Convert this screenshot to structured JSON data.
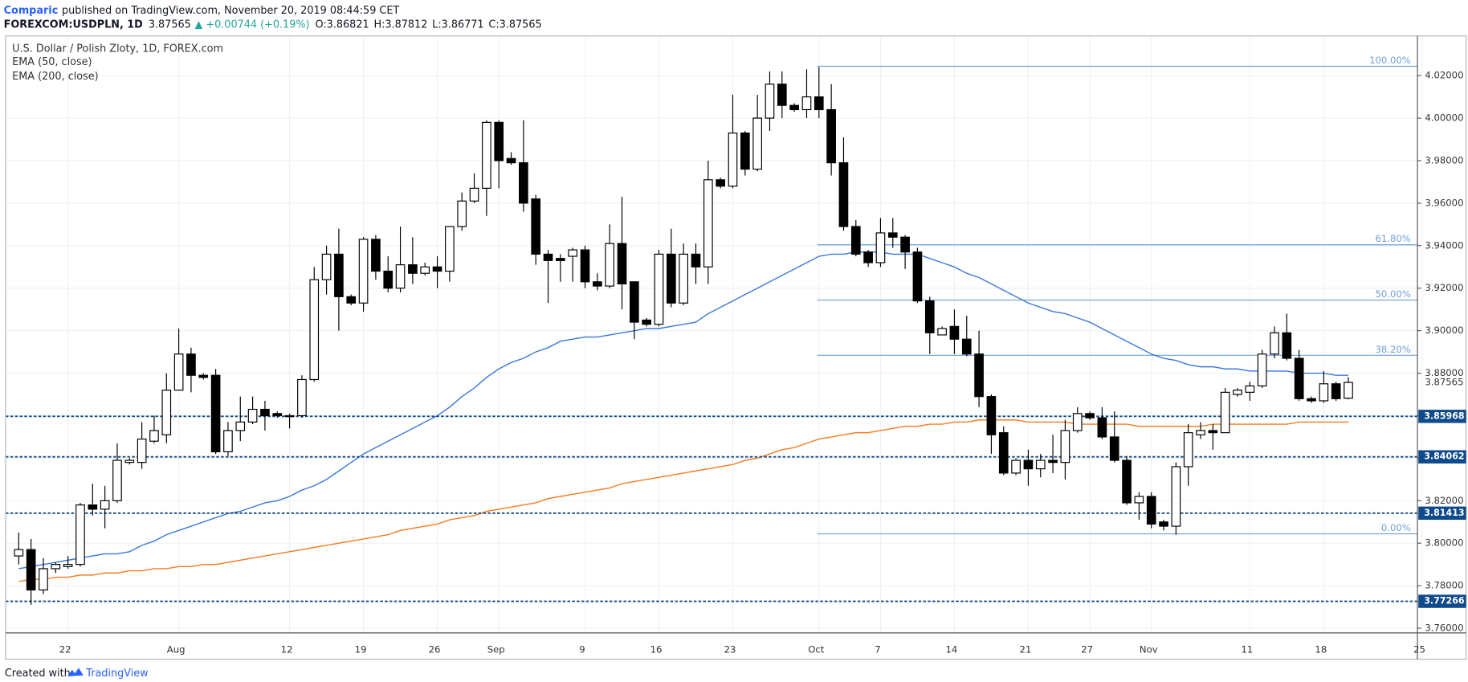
{
  "header": {
    "author": "Comparic",
    "published": "published on TradingView.com, November 20, 2019 08:44:59 CET",
    "symbol": "FOREXCOM:USDPLN, 1D",
    "price": "3.87565",
    "change": "▲ +0.00744 (+0.19%)",
    "ohlc": [
      "O:3.86821",
      "H:3.87812",
      "L:3.86771",
      "C:3.87565"
    ]
  },
  "footer": {
    "created": "Created with",
    "brand": "TradingView"
  },
  "chart_data": {
    "type": "candlestick",
    "title": "U.S. Dollar / Polish Zloty, 1D, FOREX.com",
    "categories": [
      null,
      null,
      null,
      null,
      "22",
      null,
      null,
      null,
      null,
      null,
      null,
      null,
      null,
      "Aug",
      null,
      null,
      null,
      null,
      null,
      null,
      null,
      null,
      "12",
      null,
      null,
      null,
      null,
      null,
      "19",
      null,
      null,
      null,
      null,
      null,
      "26",
      null,
      null,
      null,
      null,
      "Sep",
      null,
      null,
      null,
      null,
      null,
      null,
      "9",
      null,
      null,
      null,
      null,
      null,
      "16",
      null,
      null,
      null,
      null,
      null,
      "23",
      null,
      null,
      null,
      null,
      null,
      null,
      "Oct",
      null,
      null,
      null,
      null,
      "7",
      null,
      null,
      null,
      null,
      null,
      "14",
      null,
      null,
      null,
      null,
      null,
      "21",
      null,
      null,
      null,
      null,
      "27",
      null,
      null,
      null,
      null,
      "Nov",
      null,
      null,
      null,
      null,
      null,
      null,
      null,
      "11",
      null,
      null,
      null,
      null,
      null,
      "18",
      null,
      null,
      null,
      null,
      null,
      null,
      null,
      "25"
    ],
    "open": [
      3.794,
      3.797,
      3.778,
      3.788,
      3.789,
      3.79,
      3.818,
      3.816,
      3.82,
      3.838,
      3.838,
      3.848,
      3.851,
      3.872,
      3.889,
      3.879,
      3.879,
      3.843,
      3.853,
      3.857,
      3.863,
      3.861,
      3.86,
      3.86,
      3.877,
      3.924,
      3.936,
      3.916,
      3.913,
      3.943,
      3.928,
      3.92,
      3.931,
      3.927,
      3.93,
      3.928,
      3.949,
      3.961,
      3.967,
      3.998,
      3.981,
      3.979,
      3.962,
      3.936,
      3.934,
      3.935,
      3.938,
      3.923,
      3.921,
      3.941,
      3.923,
      3.905,
      3.903,
      3.936,
      3.913,
      3.936,
      3.93,
      3.971,
      3.968,
      3.993,
      3.976,
      4.0,
      4.016,
      4.006,
      4.004,
      4.01,
      4.004,
      3.979,
      3.949,
      3.937,
      3.932,
      3.946,
      3.944,
      3.937,
      3.914,
      3.898,
      3.902,
      3.896,
      3.889,
      3.869,
      3.852,
      3.833,
      3.839,
      3.835,
      3.839,
      3.838,
      3.853,
      3.861,
      3.859,
      3.85,
      3.839,
      3.819,
      3.822,
      3.81,
      3.808,
      3.836,
      3.851,
      3.853,
      3.852,
      3.87,
      3.871,
      3.874,
      3.889,
      3.899,
      3.887,
      3.868,
      3.867,
      3.875,
      3.86821,
      null,
      null,
      null,
      null,
      null,
      null
    ],
    "high": [
      3.805,
      3.802,
      3.793,
      3.791,
      3.794,
      3.819,
      3.828,
      3.827,
      3.847,
      3.84,
      3.857,
      3.86,
      3.88,
      3.901,
      3.892,
      3.88,
      3.882,
      3.857,
      3.869,
      3.869,
      3.867,
      3.862,
      3.861,
      3.879,
      3.93,
      3.94,
      3.948,
      3.917,
      3.944,
      3.945,
      3.935,
      3.949,
      3.944,
      3.932,
      3.935,
      3.949,
      3.965,
      3.974,
      3.999,
      3.999,
      3.984,
      3.999,
      3.964,
      3.938,
      3.936,
      3.939,
      3.94,
      3.927,
      3.95,
      3.963,
      3.923,
      3.906,
      3.938,
      3.948,
      3.941,
      3.941,
      3.98,
      3.972,
      4.011,
      3.994,
      4.011,
      4.022,
      4.022,
      4.007,
      4.023,
      4.024,
      4.016,
      3.991,
      3.952,
      3.938,
      3.953,
      3.953,
      3.945,
      3.939,
      3.916,
      3.902,
      3.91,
      3.907,
      3.9,
      3.87,
      3.855,
      3.84,
      3.844,
      3.842,
      3.851,
      3.858,
      3.864,
      3.862,
      3.864,
      3.862,
      3.841,
      3.824,
      3.824,
      3.811,
      3.838,
      3.856,
      3.857,
      3.856,
      3.873,
      3.873,
      3.876,
      3.891,
      3.902,
      3.908,
      3.891,
      3.869,
      3.881,
      3.876,
      3.87812,
      null,
      null,
      null,
      null,
      null,
      null
    ],
    "low": [
      3.79,
      3.771,
      3.776,
      3.786,
      3.788,
      3.789,
      3.813,
      3.807,
      3.819,
      3.837,
      3.835,
      3.847,
      3.847,
      3.872,
      3.871,
      3.877,
      3.842,
      3.841,
      3.848,
      3.856,
      3.853,
      3.859,
      3.854,
      3.859,
      3.876,
      3.917,
      3.9,
      3.912,
      3.909,
      3.924,
      3.918,
      3.918,
      3.922,
      3.926,
      3.92,
      3.923,
      3.947,
      3.96,
      3.954,
      3.967,
      3.978,
      3.956,
      3.931,
      3.913,
      3.923,
      3.923,
      3.92,
      3.919,
      3.92,
      3.91,
      3.896,
      3.902,
      3.902,
      3.911,
      3.912,
      3.922,
      3.922,
      3.967,
      3.967,
      3.973,
      3.975,
      3.994,
      4.0,
      4.003,
      4.0,
      4.0,
      3.973,
      3.947,
      3.935,
      3.93,
      3.93,
      3.939,
      3.929,
      3.913,
      3.889,
      3.898,
      3.889,
      3.888,
      3.864,
      3.842,
      3.832,
      3.832,
      3.827,
      3.831,
      3.833,
      3.83,
      3.852,
      3.858,
      3.849,
      3.838,
      3.818,
      3.811,
      3.807,
      3.806,
      3.804,
      3.827,
      3.849,
      3.844,
      3.852,
      3.869,
      3.867,
      3.873,
      3.887,
      3.886,
      3.867,
      3.866,
      3.866,
      3.867,
      3.86771,
      null,
      null,
      null,
      null,
      null,
      null
    ],
    "close": [
      3.797,
      3.778,
      3.788,
      3.79,
      3.79,
      3.818,
      3.816,
      3.82,
      3.839,
      3.839,
      3.849,
      3.853,
      3.872,
      3.889,
      3.879,
      3.878,
      3.843,
      3.853,
      3.857,
      3.863,
      3.86,
      3.86,
      3.86,
      3.877,
      3.924,
      3.936,
      3.916,
      3.913,
      3.943,
      3.928,
      3.92,
      3.931,
      3.927,
      3.93,
      3.928,
      3.949,
      3.961,
      3.967,
      3.998,
      3.98,
      3.979,
      3.96,
      3.936,
      3.933,
      3.933,
      3.938,
      3.923,
      3.921,
      3.941,
      3.922,
      3.904,
      3.903,
      3.936,
      3.913,
      3.936,
      3.93,
      3.971,
      3.968,
      3.993,
      3.976,
      4.0,
      4.016,
      4.006,
      4.004,
      4.01,
      4.004,
      3.979,
      3.949,
      3.936,
      3.932,
      3.946,
      3.944,
      3.937,
      3.914,
      3.899,
      3.901,
      3.896,
      3.889,
      3.869,
      3.851,
      3.833,
      3.839,
      3.835,
      3.839,
      3.838,
      3.853,
      3.861,
      3.859,
      3.85,
      3.839,
      3.819,
      3.822,
      3.809,
      3.808,
      3.836,
      3.852,
      3.853,
      3.852,
      3.871,
      3.872,
      3.874,
      3.889,
      3.899,
      3.887,
      3.868,
      3.867,
      3.875,
      3.868,
      3.87565,
      null,
      null,
      null,
      null,
      null,
      null
    ],
    "up_color": "#ffffff",
    "down_color": "#000000",
    "wick_color": "#000000",
    "series": [
      {
        "name": "EMA (50, close)",
        "color": "#3c78d8",
        "values": [
          3.788,
          3.789,
          3.79,
          3.791,
          3.792,
          3.793,
          3.794,
          3.795,
          3.795,
          3.796,
          3.799,
          3.801,
          3.804,
          3.806,
          3.808,
          3.81,
          3.812,
          3.814,
          3.815,
          3.817,
          3.819,
          3.82,
          3.822,
          3.825,
          3.827,
          3.83,
          3.834,
          3.838,
          3.842,
          3.845,
          3.848,
          3.851,
          3.854,
          3.857,
          3.86,
          3.864,
          3.869,
          3.873,
          3.878,
          3.882,
          3.885,
          3.887,
          3.89,
          3.892,
          3.895,
          3.896,
          3.897,
          3.897,
          3.898,
          3.899,
          3.9,
          3.901,
          3.901,
          3.902,
          3.903,
          3.904,
          3.908,
          3.911,
          3.914,
          3.917,
          3.92,
          3.923,
          3.926,
          3.929,
          3.932,
          3.935,
          3.936,
          3.936,
          3.937,
          3.937,
          3.937,
          3.936,
          3.936,
          3.936,
          3.934,
          3.932,
          3.93,
          3.927,
          3.925,
          3.922,
          3.919,
          3.916,
          3.913,
          3.911,
          3.909,
          3.908,
          3.906,
          3.904,
          3.901,
          3.898,
          3.895,
          3.892,
          3.889,
          3.887,
          3.886,
          3.884,
          3.883,
          3.883,
          3.882,
          3.882,
          3.881,
          3.881,
          3.881,
          3.881,
          3.88,
          3.88,
          3.88,
          3.879,
          3.879,
          null,
          null,
          null,
          null,
          null,
          null
        ]
      },
      {
        "name": "EMA (200, close)",
        "color": "#f57c21",
        "values": [
          3.782,
          3.783,
          3.783,
          3.784,
          3.784,
          3.785,
          3.785,
          3.786,
          3.786,
          3.787,
          3.787,
          3.788,
          3.788,
          3.789,
          3.789,
          3.79,
          3.79,
          3.791,
          3.792,
          3.793,
          3.794,
          3.795,
          3.796,
          3.797,
          3.798,
          3.799,
          3.8,
          3.801,
          3.802,
          3.803,
          3.804,
          3.806,
          3.807,
          3.808,
          3.809,
          3.811,
          3.812,
          3.813,
          3.815,
          3.816,
          3.817,
          3.818,
          3.819,
          3.821,
          3.822,
          3.823,
          3.824,
          3.825,
          3.826,
          3.828,
          3.829,
          3.83,
          3.831,
          3.832,
          3.833,
          3.834,
          3.835,
          3.836,
          3.837,
          3.839,
          3.84,
          3.842,
          3.844,
          3.845,
          3.847,
          3.849,
          3.85,
          3.851,
          3.852,
          3.852,
          3.853,
          3.854,
          3.855,
          3.855,
          3.856,
          3.856,
          3.857,
          3.857,
          3.858,
          3.858,
          3.858,
          3.858,
          3.857,
          3.857,
          3.857,
          3.857,
          3.856,
          3.856,
          3.856,
          3.856,
          3.856,
          3.855,
          3.855,
          3.855,
          3.855,
          3.855,
          3.855,
          3.856,
          3.856,
          3.856,
          3.856,
          3.856,
          3.856,
          3.856,
          3.857,
          3.857,
          3.857,
          3.857,
          3.857,
          null,
          null,
          null,
          null,
          null,
          null
        ]
      }
    ],
    "ylim": [
      3.7578,
      4.0387
    ],
    "yticks": [
      {
        "value": 3.76,
        "label": "3.76000"
      },
      {
        "value": 3.78,
        "label": "3.78000"
      },
      {
        "value": 3.8,
        "label": "3.80000"
      },
      {
        "value": 3.82,
        "label": "3.82000"
      },
      {
        "value": 3.84,
        "label": "3.84000"
      },
      {
        "value": 3.86,
        "label": "3.86000"
      },
      {
        "value": 3.88,
        "label": "3.88000"
      },
      {
        "value": 3.9,
        "label": "3.90000"
      },
      {
        "value": 3.92,
        "label": "3.92000"
      },
      {
        "value": 3.94,
        "label": "3.94000"
      },
      {
        "value": 3.96,
        "label": "3.96000"
      },
      {
        "value": 3.98,
        "label": "3.98000"
      },
      {
        "value": 4.0,
        "label": "4.00000"
      },
      {
        "value": 4.02,
        "label": "4.02000"
      }
    ],
    "grid": true,
    "last_price": {
      "value": 3.87565,
      "label": "3.87565"
    },
    "levels_color": "#0f4a8a",
    "levels": [
      {
        "value": 3.85968,
        "label": "3.85968"
      },
      {
        "value": 3.84062,
        "label": "3.84062"
      },
      {
        "value": 3.81413,
        "label": "3.81413"
      },
      {
        "value": 3.77266,
        "label": "3.77266"
      }
    ],
    "fib_color": "#6f9fd8",
    "fib": [
      {
        "value": 4.0244,
        "label": "100.00%"
      },
      {
        "value": 3.9404,
        "label": "61.80%"
      },
      {
        "value": 3.9144,
        "label": "50.00%"
      },
      {
        "value": 3.8884,
        "label": "38.20%"
      },
      {
        "value": 3.8044,
        "label": "0.00%"
      }
    ]
  }
}
